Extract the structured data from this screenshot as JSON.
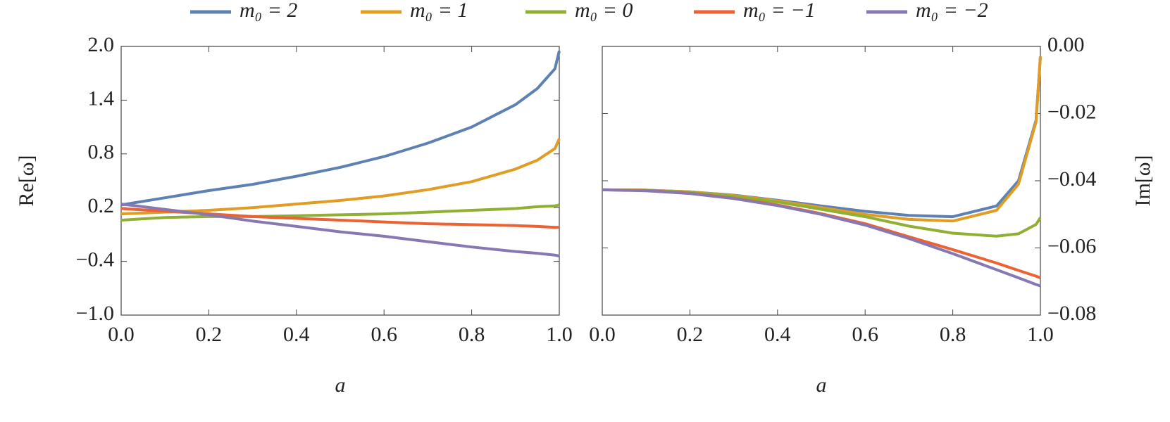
{
  "chart_data": [
    {
      "type": "line",
      "ylabel": "Re[ω]",
      "xlabel": "a",
      "y_axis_side": "left",
      "x": [
        0,
        0.1,
        0.2,
        0.3,
        0.4,
        0.5,
        0.6,
        0.7,
        0.8,
        0.9,
        0.95,
        0.99,
        1.0
      ],
      "xlim": [
        0,
        1
      ],
      "ylim": [
        -1,
        2
      ],
      "xticks": [
        {
          "value": 0,
          "label": "0.0"
        },
        0.2,
        0.4,
        0.6,
        0.8,
        {
          "value": 1,
          "label": "1.0"
        }
      ],
      "yticks": [
        {
          "value": -1,
          "label": "−1.0"
        },
        {
          "value": -0.4,
          "label": "−0.4"
        },
        0.2,
        0.8,
        1.4,
        {
          "value": 2,
          "label": "2.0"
        }
      ],
      "series": [
        {
          "name": "m₀ = 2",
          "color": "#5e81b5",
          "values": [
            0.23,
            0.31,
            0.39,
            0.46,
            0.55,
            0.65,
            0.77,
            0.92,
            1.1,
            1.35,
            1.53,
            1.75,
            1.95
          ]
        },
        {
          "name": "m₀ = 1",
          "color": "#e19c24",
          "values": [
            0.13,
            0.15,
            0.17,
            0.2,
            0.24,
            0.28,
            0.33,
            0.4,
            0.49,
            0.63,
            0.73,
            0.86,
            0.97
          ]
        },
        {
          "name": "m₀ = 0",
          "color": "#8fb032",
          "values": [
            0.06,
            0.09,
            0.1,
            0.1,
            0.11,
            0.12,
            0.13,
            0.15,
            0.17,
            0.19,
            0.21,
            0.22,
            0.23
          ]
        },
        {
          "name": "m₀ = −1",
          "color": "#eb6235",
          "values": [
            0.19,
            0.16,
            0.13,
            0.1,
            0.08,
            0.06,
            0.04,
            0.02,
            0.01,
            0.0,
            -0.01,
            -0.02,
            -0.02
          ]
        },
        {
          "name": "m₀ = −2",
          "color": "#8778b3",
          "values": [
            0.24,
            0.18,
            0.12,
            0.05,
            -0.01,
            -0.07,
            -0.12,
            -0.18,
            -0.24,
            -0.29,
            -0.31,
            -0.33,
            -0.34
          ]
        }
      ]
    },
    {
      "type": "line",
      "ylabel": "Im[ω]",
      "xlabel": "a",
      "y_axis_side": "right",
      "x": [
        0,
        0.1,
        0.2,
        0.3,
        0.4,
        0.5,
        0.6,
        0.7,
        0.8,
        0.9,
        0.95,
        0.99,
        1.0
      ],
      "xlim": [
        0,
        1
      ],
      "ylim": [
        -0.08,
        0
      ],
      "xticks": [
        {
          "value": 0,
          "label": "0.0"
        },
        0.2,
        0.4,
        0.6,
        0.8,
        {
          "value": 1,
          "label": "1.0"
        }
      ],
      "yticks": [
        {
          "value": -0.08,
          "label": "−0.08"
        },
        {
          "value": -0.06,
          "label": "−0.06"
        },
        {
          "value": -0.04,
          "label": "−0.04"
        },
        {
          "value": -0.02,
          "label": "−0.02"
        },
        {
          "value": 0,
          "label": "0.00"
        }
      ],
      "series": [
        {
          "color": "#5e81b5",
          "values": [
            -0.0427,
            -0.0428,
            -0.0433,
            -0.0443,
            -0.0458,
            -0.0475,
            -0.0491,
            -0.0503,
            -0.0507,
            -0.0475,
            -0.04,
            -0.022,
            -0.003
          ]
        },
        {
          "color": "#e19c24",
          "values": [
            -0.0427,
            -0.0428,
            -0.0433,
            -0.0444,
            -0.046,
            -0.048,
            -0.05,
            -0.0515,
            -0.052,
            -0.0488,
            -0.041,
            -0.0225,
            -0.003
          ]
        },
        {
          "color": "#8fb032",
          "values": [
            -0.0427,
            -0.0428,
            -0.0434,
            -0.0446,
            -0.0463,
            -0.0485,
            -0.0507,
            -0.0535,
            -0.0556,
            -0.0565,
            -0.0558,
            -0.053,
            -0.051
          ]
        },
        {
          "color": "#eb6235",
          "values": [
            -0.0427,
            -0.0429,
            -0.0437,
            -0.0452,
            -0.0472,
            -0.0498,
            -0.0528,
            -0.0567,
            -0.0605,
            -0.0645,
            -0.0667,
            -0.0684,
            -0.0689
          ]
        },
        {
          "color": "#8778b3",
          "values": [
            -0.0427,
            -0.043,
            -0.0438,
            -0.0453,
            -0.0474,
            -0.05,
            -0.0532,
            -0.0572,
            -0.0617,
            -0.0665,
            -0.0689,
            -0.0709,
            -0.0713
          ]
        }
      ]
    }
  ]
}
